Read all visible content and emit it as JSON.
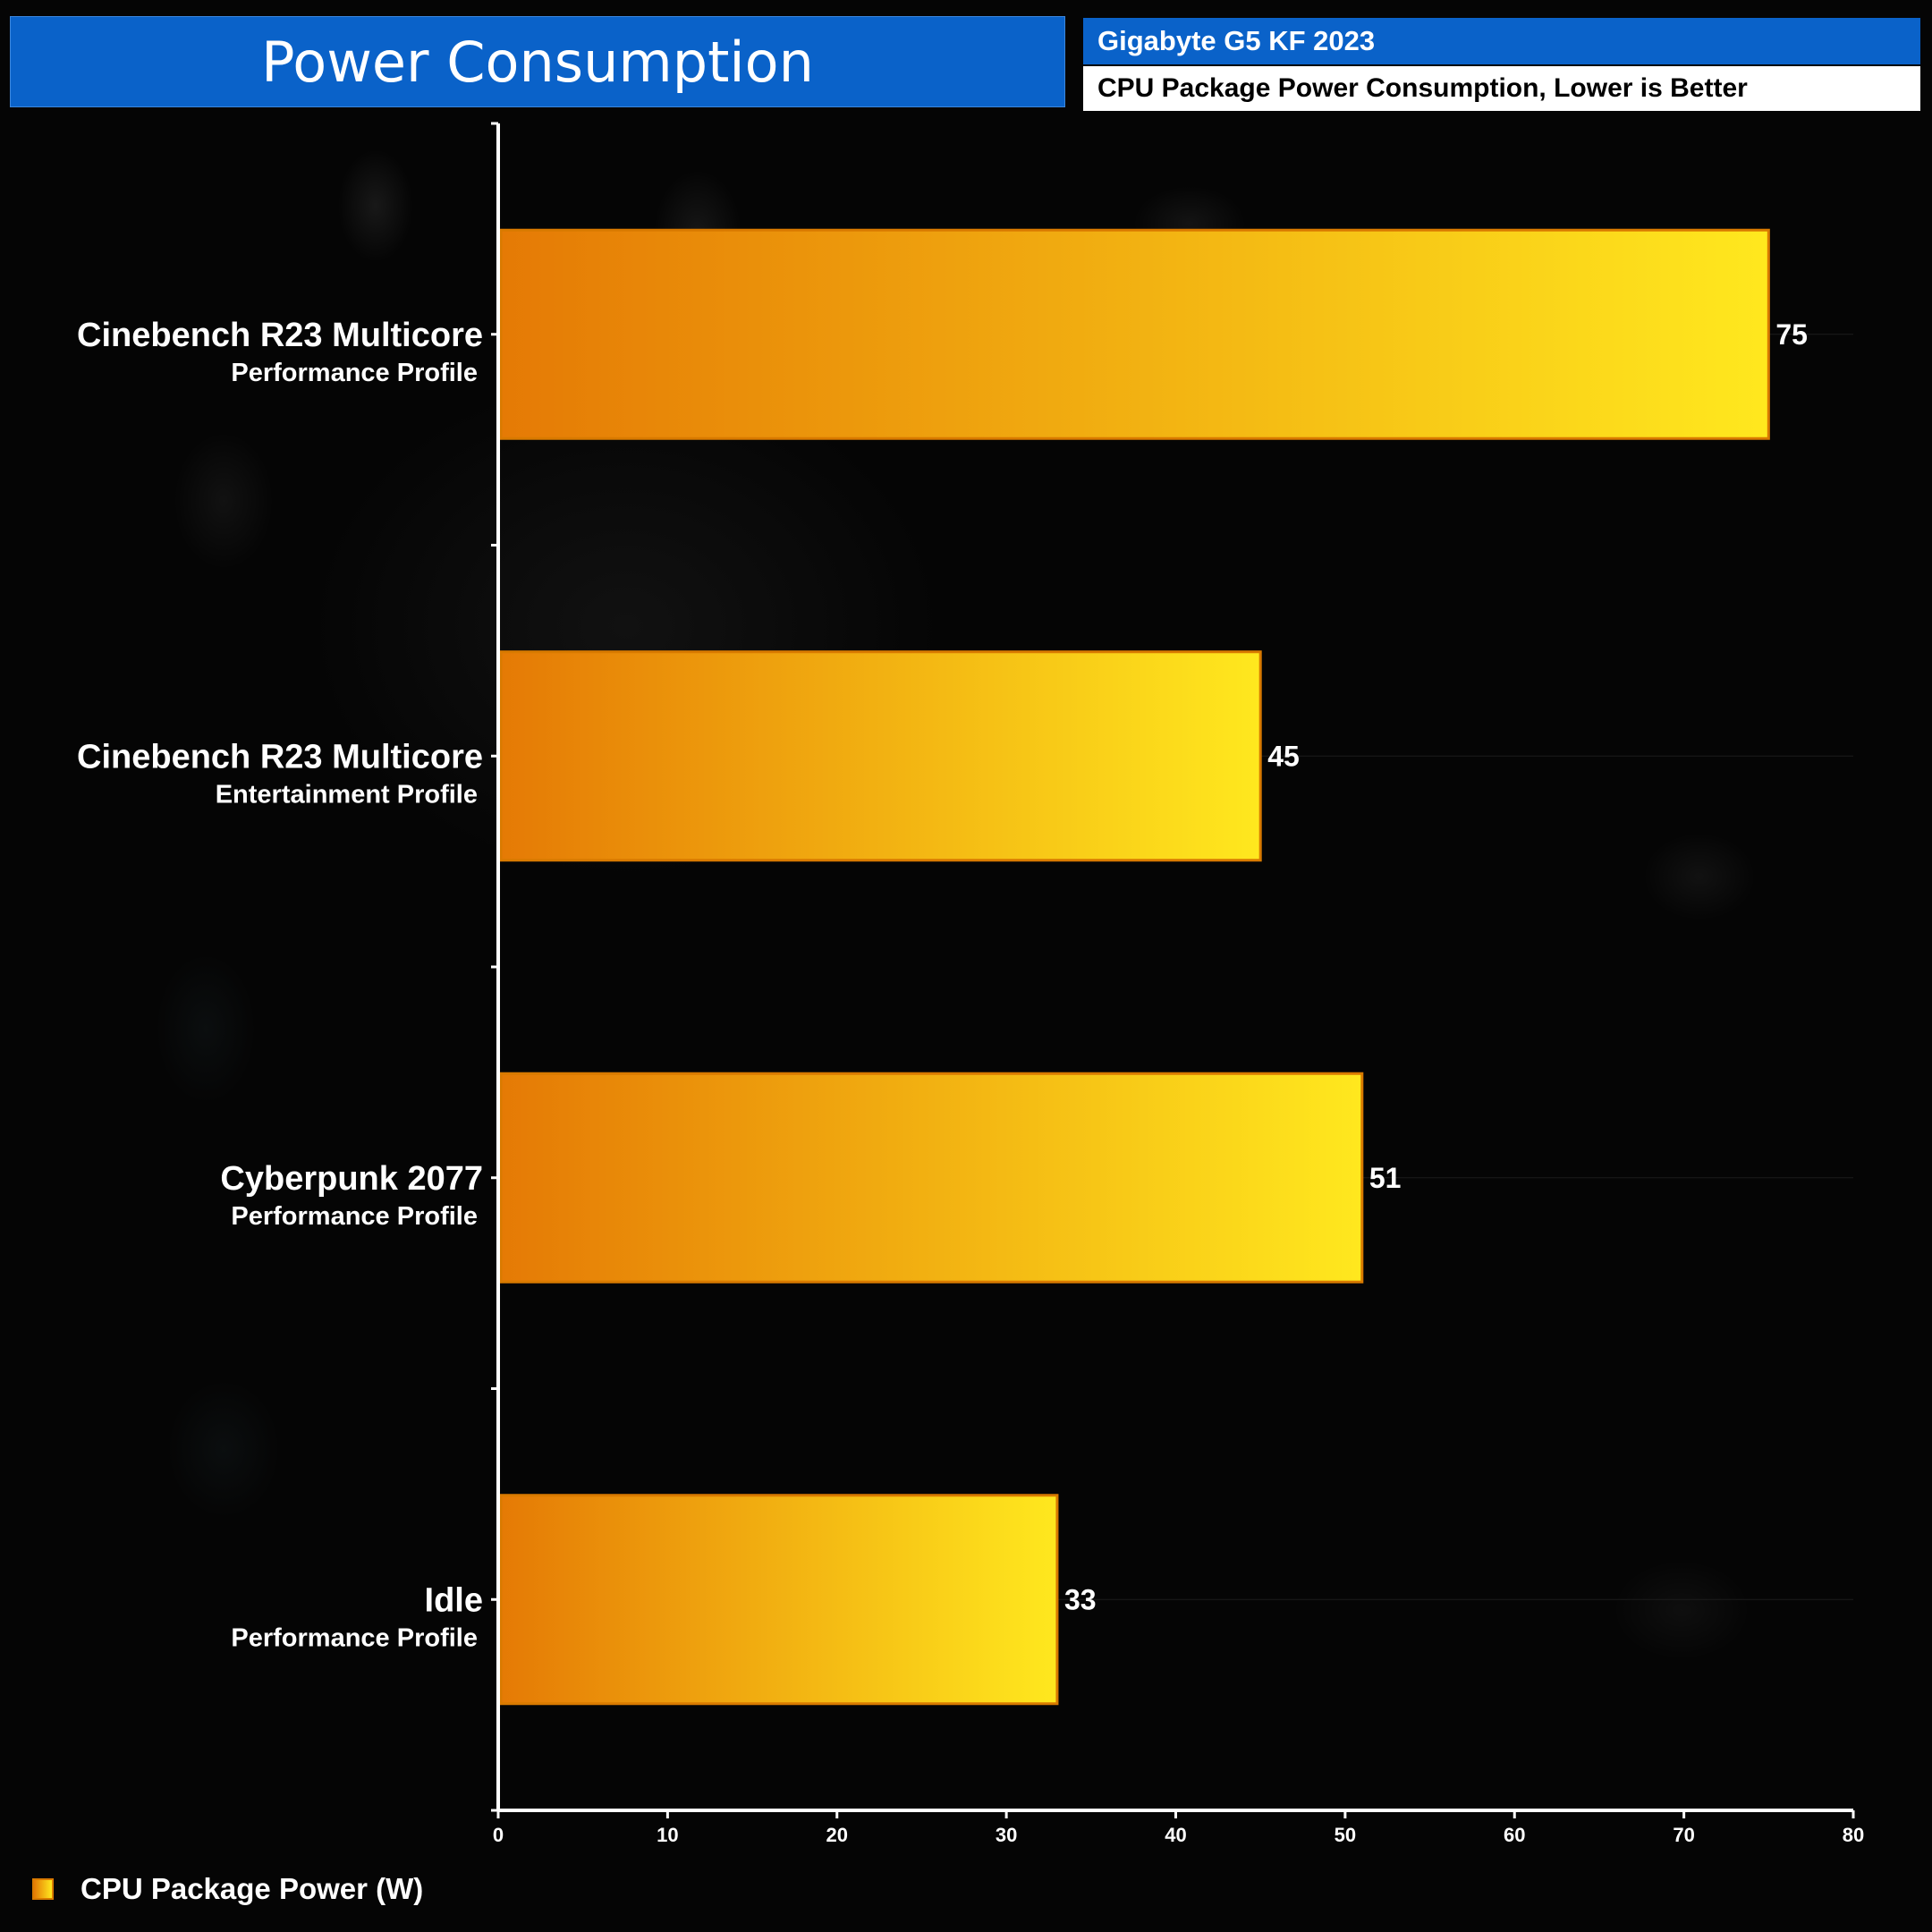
{
  "header": {
    "title": "Power Consumption",
    "product": "Gigabyte G5 KF 2023",
    "subtitle": "CPU Package Power Consumption, Lower is Better"
  },
  "colors": {
    "bar_start": "#e57a05",
    "bar_end": "#ffe81e",
    "bar_border": "#d97a00",
    "header_blue": "#0a62c9"
  },
  "chart_data": {
    "type": "bar",
    "orientation": "horizontal",
    "categories": [
      {
        "name": "Cinebench R23 Multicore",
        "sub": "Performance Profile"
      },
      {
        "name": "Cinebench R23 Multicore",
        "sub": "Entertainment Profile"
      },
      {
        "name": "Cyberpunk 2077",
        "sub": "Performance Profile"
      },
      {
        "name": "Idle",
        "sub": "Performance Profile"
      }
    ],
    "series": [
      {
        "name": "CPU Package Power (W)",
        "values": [
          75,
          45,
          51,
          33
        ]
      }
    ],
    "xlim": [
      0,
      80
    ],
    "xticks": [
      0,
      10,
      20,
      30,
      40,
      50,
      60,
      70,
      80
    ],
    "grid": true,
    "legend_position": "bottom-left"
  }
}
